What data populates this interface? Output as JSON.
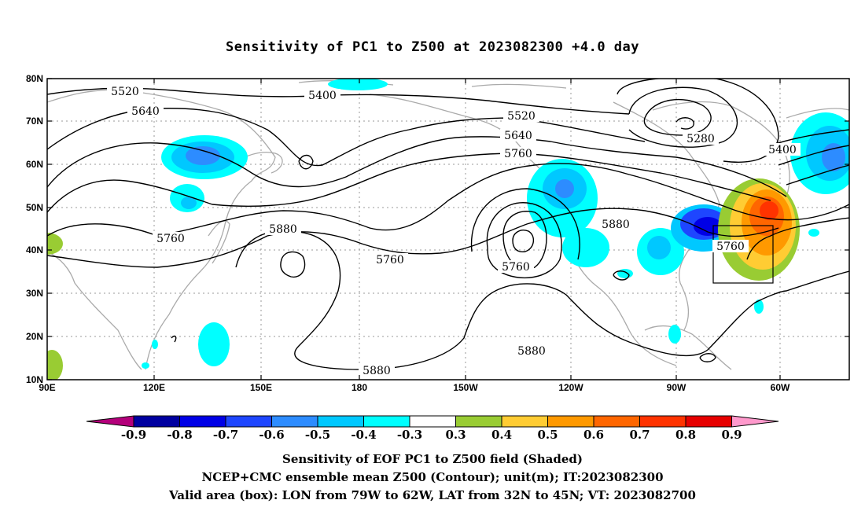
{
  "title": "Sensitivity of PC1 to Z500 at 2023082300 +4.0 day",
  "map": {
    "lat_labels": [
      "80N",
      "70N",
      "60N",
      "50N",
      "40N",
      "30N",
      "20N",
      "10N"
    ],
    "lon_labels": [
      "90E",
      "120E",
      "150E",
      "180",
      "150W",
      "120W",
      "90W",
      "60W"
    ],
    "contour_labels": [
      "5520",
      "5400",
      "5640",
      "5520",
      "5640",
      "5760",
      "5280",
      "5400",
      "5880",
      "5760",
      "5880",
      "5760",
      "5760",
      "5760",
      "5880",
      "5880"
    ],
    "box": {
      "lon_w": "79W",
      "lon_e": "62W",
      "lat_s": "32N",
      "lat_n": "45N"
    }
  },
  "colorbar": {
    "labels": [
      "-0.9",
      "-0.8",
      "-0.7",
      "-0.6",
      "-0.5",
      "-0.4",
      "-0.3",
      "0.3",
      "0.4",
      "0.5",
      "0.6",
      "0.7",
      "0.8",
      "0.9"
    ],
    "colors": [
      "#b4007b",
      "#0000a0",
      "#0000e6",
      "#1e46ff",
      "#2d8cff",
      "#00c8ff",
      "#00ffff",
      "#ffffff",
      "#99cc33",
      "#ffcc33",
      "#ff9900",
      "#ff6600",
      "#ff3300",
      "#e60000",
      "#ff99cc"
    ]
  },
  "footer": {
    "line1": "Sensitivity of EOF PC1 to Z500 field (Shaded)",
    "line2": "NCEP+CMC ensemble mean Z500 (Contour); unit(m); IT:2023082300",
    "line3": "Valid area (box): LON from 79W to 62W, LAT from 32N to 45N; VT: 2023082700"
  }
}
